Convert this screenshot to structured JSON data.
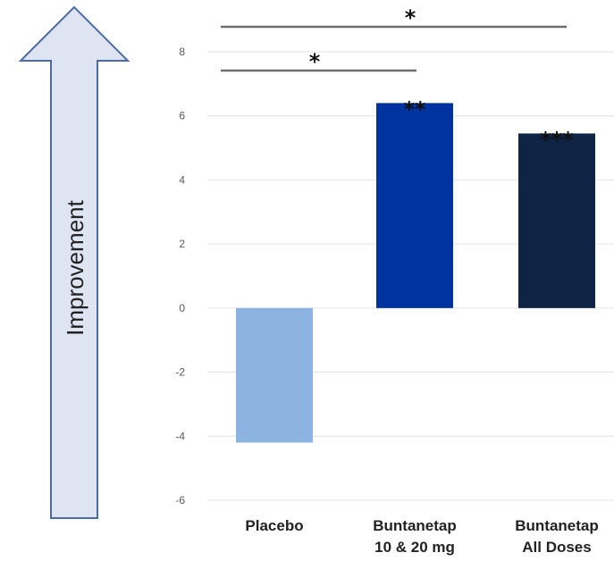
{
  "chart_data": {
    "type": "bar",
    "categories": [
      [
        "Placebo"
      ],
      [
        "Buntanetap",
        "10 & 20 mg"
      ],
      [
        "Buntanetap",
        "All Doses"
      ]
    ],
    "values": [
      -4.2,
      6.4,
      5.45
    ],
    "bar_colors": [
      "#8db3e2",
      "#0033a0",
      "#0f2444"
    ],
    "ylim": [
      -6,
      8
    ],
    "yticks": [
      -6,
      -4,
      -2,
      0,
      2,
      4,
      6,
      8
    ],
    "grid": true,
    "bar_annotations": [
      "",
      "**",
      "***"
    ],
    "significance_brackets": [
      {
        "from": 0,
        "to": 2,
        "label": "*"
      },
      {
        "from": 0,
        "to": 1,
        "label": "*"
      }
    ],
    "side_arrow": {
      "label": "Improvement",
      "direction": "up",
      "fill": "#dfe4f2",
      "stroke": "#4a6aa8"
    }
  }
}
